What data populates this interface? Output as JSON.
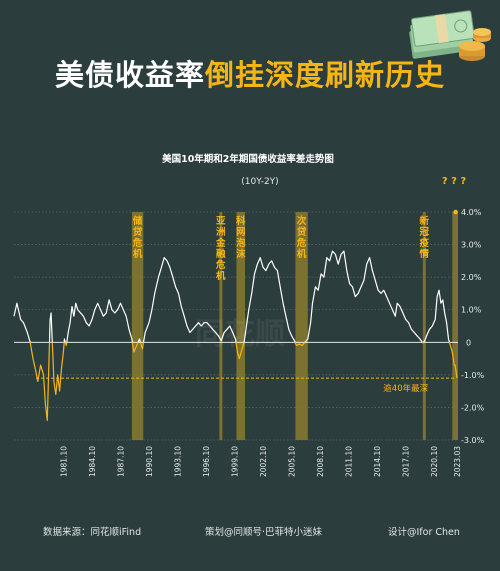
{
  "headline": {
    "part1": "美债收益率",
    "part2": "倒挂深度刷新历史"
  },
  "footer": {
    "source": "数据来源：同花顺iFind",
    "planner": "策划@同顺号·巴菲特小迷妹",
    "design": "设计@Ifor Chen"
  },
  "colors": {
    "background": "#2b3d3c",
    "gold": "#f5b615",
    "line": "#ffffff",
    "band": "#8a7a2e"
  },
  "icons": [
    "money-stack-icon",
    "coin-stack-icon"
  ],
  "chart_data": {
    "type": "line",
    "title": "美国10年期和2年期国债收益率差走势图",
    "subtitle": "(10Y-2Y)",
    "watermark": "同花顺",
    "ylabel_unit": "%",
    "ylim": [
      -3.0,
      4.0
    ],
    "yticks": [
      "4.0%",
      "3.0%",
      "2.0%",
      "1.0%",
      "0",
      "-1.0%",
      "-2.0%",
      "-3.0%"
    ],
    "ytick_values": [
      4,
      3,
      2,
      1,
      0,
      -1,
      -2,
      -3
    ],
    "xlim": [
      1976.6,
      2023.3
    ],
    "xticks": [
      "1981.10",
      "1984.10",
      "1987.10",
      "1990.10",
      "1993.10",
      "1996.10",
      "1999.10",
      "2002.10",
      "2005.10",
      "2008.10",
      "2011.10",
      "2014.10",
      "2017.10",
      "2020.10",
      "2023.03"
    ],
    "xtick_values": [
      1981.8,
      1984.8,
      1987.8,
      1990.8,
      1993.8,
      1996.8,
      1999.8,
      2002.8,
      2005.8,
      2008.8,
      2011.8,
      2014.8,
      2017.8,
      2020.8,
      2023.2
    ],
    "reference_line": {
      "value": -1.1,
      "label": "逾40年最深"
    },
    "question_marks": "? ? ?",
    "events": [
      {
        "label": "储贷危机",
        "start": 1989.0,
        "end": 1990.2
      },
      {
        "label": "亚洲金融危机",
        "start": 1998.2,
        "end": 1998.5
      },
      {
        "label": "科网泡沫",
        "start": 2000.0,
        "end": 2000.9
      },
      {
        "label": "次贷危机",
        "start": 2006.2,
        "end": 2007.5
      },
      {
        "label": "新冠疫情",
        "start": 2019.6,
        "end": 2019.9
      },
      {
        "label": "",
        "start": 2022.7,
        "end": 2023.3
      }
    ],
    "series": [
      {
        "points": [
          [
            1976.6,
            0.8
          ],
          [
            1976.9,
            1.2
          ],
          [
            1977.3,
            0.7
          ],
          [
            1977.6,
            0.6
          ],
          [
            1978.0,
            0.3
          ],
          [
            1978.3,
            0.0
          ],
          [
            1978.6,
            -0.5
          ],
          [
            1978.9,
            -0.9
          ],
          [
            1979.1,
            -1.2
          ],
          [
            1979.4,
            -0.7
          ],
          [
            1979.7,
            -1.0
          ],
          [
            1979.9,
            -1.9
          ],
          [
            1980.1,
            -2.4
          ],
          [
            1980.2,
            -1.4
          ],
          [
            1980.4,
            0.7
          ],
          [
            1980.5,
            0.9
          ],
          [
            1980.6,
            0.2
          ],
          [
            1980.7,
            -0.5
          ],
          [
            1980.8,
            -1.2
          ],
          [
            1981.0,
            -1.6
          ],
          [
            1981.2,
            -1.0
          ],
          [
            1981.4,
            -1.5
          ],
          [
            1981.6,
            -0.8
          ],
          [
            1981.8,
            -0.3
          ],
          [
            1981.9,
            0.1
          ],
          [
            1982.1,
            -0.1
          ],
          [
            1982.3,
            0.3
          ],
          [
            1982.5,
            0.6
          ],
          [
            1982.7,
            1.1
          ],
          [
            1982.9,
            0.8
          ],
          [
            1983.1,
            1.2
          ],
          [
            1983.3,
            1.0
          ],
          [
            1983.6,
            0.9
          ],
          [
            1983.9,
            0.8
          ],
          [
            1984.2,
            0.6
          ],
          [
            1984.5,
            0.5
          ],
          [
            1984.8,
            0.7
          ],
          [
            1985.1,
            1.0
          ],
          [
            1985.4,
            1.2
          ],
          [
            1985.7,
            1.0
          ],
          [
            1986.0,
            0.8
          ],
          [
            1986.3,
            0.9
          ],
          [
            1986.6,
            1.3
          ],
          [
            1986.9,
            1.0
          ],
          [
            1987.2,
            0.9
          ],
          [
            1987.5,
            1.0
          ],
          [
            1987.8,
            1.2
          ],
          [
            1988.1,
            1.0
          ],
          [
            1988.4,
            0.8
          ],
          [
            1988.7,
            0.4
          ],
          [
            1989.0,
            0.1
          ],
          [
            1989.2,
            -0.3
          ],
          [
            1989.5,
            -0.1
          ],
          [
            1989.8,
            0.1
          ],
          [
            1990.1,
            -0.2
          ],
          [
            1990.4,
            0.3
          ],
          [
            1990.8,
            0.6
          ],
          [
            1991.1,
            1.0
          ],
          [
            1991.4,
            1.5
          ],
          [
            1991.8,
            2.0
          ],
          [
            1992.1,
            2.3
          ],
          [
            1992.4,
            2.6
          ],
          [
            1992.7,
            2.5
          ],
          [
            1993.0,
            2.3
          ],
          [
            1993.3,
            2.0
          ],
          [
            1993.6,
            1.7
          ],
          [
            1993.9,
            1.5
          ],
          [
            1994.2,
            1.1
          ],
          [
            1994.5,
            0.8
          ],
          [
            1994.8,
            0.5
          ],
          [
            1995.1,
            0.3
          ],
          [
            1995.4,
            0.4
          ],
          [
            1995.7,
            0.5
          ],
          [
            1996.0,
            0.6
          ],
          [
            1996.3,
            0.5
          ],
          [
            1996.6,
            0.6
          ],
          [
            1996.9,
            0.6
          ],
          [
            1997.2,
            0.5
          ],
          [
            1997.5,
            0.4
          ],
          [
            1997.8,
            0.3
          ],
          [
            1998.1,
            0.2
          ],
          [
            1998.4,
            0.05
          ],
          [
            1998.7,
            0.3
          ],
          [
            1999.0,
            0.4
          ],
          [
            1999.3,
            0.5
          ],
          [
            1999.6,
            0.3
          ],
          [
            1999.9,
            0.1
          ],
          [
            2000.1,
            -0.3
          ],
          [
            2000.3,
            -0.5
          ],
          [
            2000.5,
            -0.3
          ],
          [
            2000.8,
            0.0
          ],
          [
            2001.1,
            0.6
          ],
          [
            2001.3,
            1.0
          ],
          [
            2001.6,
            1.5
          ],
          [
            2001.9,
            2.1
          ],
          [
            2002.2,
            2.4
          ],
          [
            2002.5,
            2.6
          ],
          [
            2002.8,
            2.3
          ],
          [
            2003.1,
            2.2
          ],
          [
            2003.4,
            2.4
          ],
          [
            2003.7,
            2.5
          ],
          [
            2004.0,
            2.3
          ],
          [
            2004.3,
            2.2
          ],
          [
            2004.6,
            1.7
          ],
          [
            2004.9,
            1.2
          ],
          [
            2005.2,
            0.8
          ],
          [
            2005.5,
            0.4
          ],
          [
            2005.8,
            0.2
          ],
          [
            2006.1,
            0.05
          ],
          [
            2006.3,
            -0.1
          ],
          [
            2006.6,
            -0.05
          ],
          [
            2006.9,
            -0.1
          ],
          [
            2007.2,
            0.0
          ],
          [
            2007.5,
            0.1
          ],
          [
            2007.8,
            0.6
          ],
          [
            2008.0,
            1.2
          ],
          [
            2008.3,
            1.7
          ],
          [
            2008.6,
            1.6
          ],
          [
            2008.9,
            2.1
          ],
          [
            2009.2,
            2.0
          ],
          [
            2009.5,
            2.6
          ],
          [
            2009.8,
            2.5
          ],
          [
            2010.1,
            2.8
          ],
          [
            2010.4,
            2.7
          ],
          [
            2010.7,
            2.4
          ],
          [
            2011.0,
            2.7
          ],
          [
            2011.3,
            2.8
          ],
          [
            2011.6,
            2.2
          ],
          [
            2011.9,
            1.8
          ],
          [
            2012.2,
            1.7
          ],
          [
            2012.5,
            1.4
          ],
          [
            2012.8,
            1.5
          ],
          [
            2013.1,
            1.7
          ],
          [
            2013.4,
            1.9
          ],
          [
            2013.7,
            2.4
          ],
          [
            2014.0,
            2.6
          ],
          [
            2014.3,
            2.2
          ],
          [
            2014.6,
            1.9
          ],
          [
            2014.9,
            1.6
          ],
          [
            2015.2,
            1.5
          ],
          [
            2015.5,
            1.6
          ],
          [
            2015.8,
            1.4
          ],
          [
            2016.1,
            1.2
          ],
          [
            2016.4,
            1.0
          ],
          [
            2016.7,
            0.8
          ],
          [
            2016.9,
            1.2
          ],
          [
            2017.2,
            1.1
          ],
          [
            2017.5,
            0.9
          ],
          [
            2017.8,
            0.7
          ],
          [
            2018.1,
            0.6
          ],
          [
            2018.4,
            0.4
          ],
          [
            2018.7,
            0.3
          ],
          [
            2019.0,
            0.2
          ],
          [
            2019.3,
            0.1
          ],
          [
            2019.6,
            -0.02
          ],
          [
            2019.8,
            0.05
          ],
          [
            2020.0,
            0.2
          ],
          [
            2020.3,
            0.4
          ],
          [
            2020.6,
            0.5
          ],
          [
            2020.9,
            0.7
          ],
          [
            2021.1,
            1.4
          ],
          [
            2021.3,
            1.6
          ],
          [
            2021.5,
            1.2
          ],
          [
            2021.7,
            1.3
          ],
          [
            2021.9,
            0.9
          ],
          [
            2022.1,
            0.6
          ],
          [
            2022.3,
            0.1
          ],
          [
            2022.5,
            -0.1
          ],
          [
            2022.7,
            -0.3
          ],
          [
            2022.9,
            -0.7
          ],
          [
            2023.0,
            -0.7
          ],
          [
            2023.1,
            -0.9
          ],
          [
            2023.2,
            -1.1
          ]
        ]
      }
    ]
  }
}
